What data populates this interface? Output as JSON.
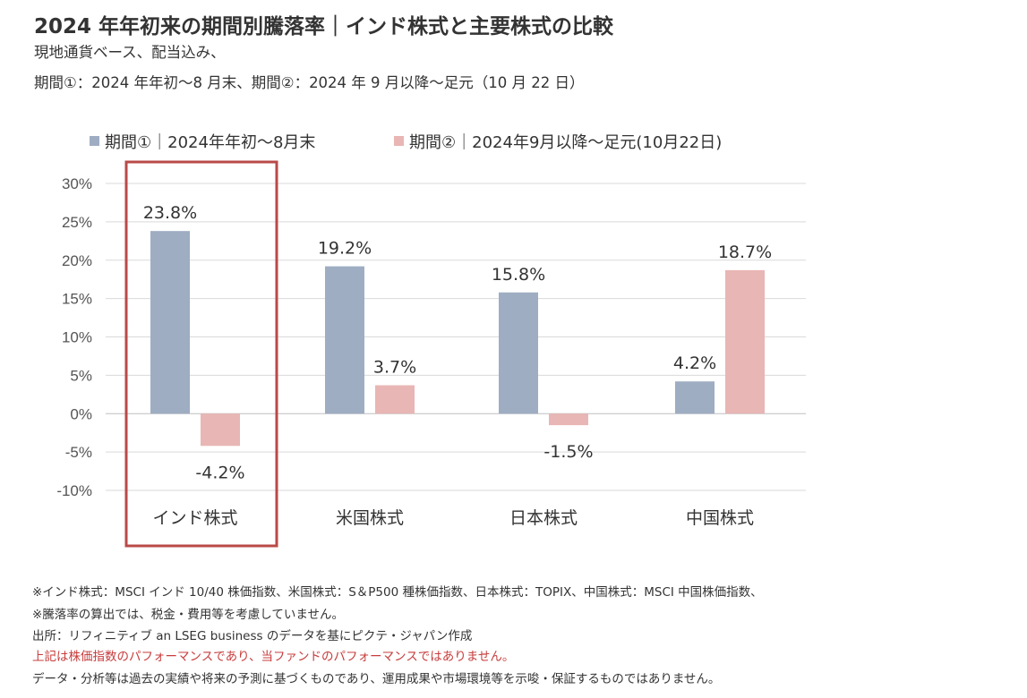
{
  "header": {
    "title": "2024 年年初来の期間別騰落率｜インド株式と主要株式の比較",
    "subtitle1": "現地通貨ベース、配当込み、",
    "subtitle2": "期間①：2024 年年初～8 月末、期間②：2024 年 9 月以降～足元（10 月 22 日）"
  },
  "colors": {
    "series1": "#9eadc2",
    "series2": "#e8b6b4",
    "highlight": "#b94a48",
    "grid": "#d9d9d9",
    "note_red": "#c83c3c"
  },
  "chart_data": {
    "type": "bar",
    "categories": [
      "インド株式",
      "米国株式",
      "日本株式",
      "中国株式"
    ],
    "series": [
      {
        "name": "期間①｜2024年年初～8月末",
        "values": [
          23.8,
          19.2,
          15.8,
          4.2
        ],
        "labels": [
          "23.8%",
          "19.2%",
          "15.8%",
          "4.2%"
        ]
      },
      {
        "name": "期間②｜2024年9月以降～足元(10月22日)",
        "values": [
          -4.2,
          3.7,
          -1.5,
          18.7
        ],
        "labels": [
          "-4.2%",
          "3.7%",
          "-1.5%",
          "18.7%"
        ]
      }
    ],
    "yticks": [
      30,
      25,
      20,
      15,
      10,
      5,
      0,
      -5,
      -10
    ],
    "ytick_labels": [
      "30%",
      "25%",
      "20%",
      "15%",
      "10%",
      "5%",
      "0%",
      "-5%",
      "-10%"
    ],
    "ylim": [
      -10,
      30
    ],
    "grid": true,
    "legend_position": "top",
    "highlighted_category": "インド株式"
  },
  "notes": [
    "※インド株式：MSCI インド 10/40 株価指数、米国株式：S＆P500 種株価指数、日本株式：TOPIX、中国株式：MSCI 中国株価指数、",
    "※騰落率の算出では、税金・費用等を考慮していません。",
    "出所：リフィニティブ an LSEG business のデータを基にピクテ・ジャパン作成",
    "上記は株価指数のパフォーマンスであり、当ファンドのパフォーマンスではありません。",
    "データ・分析等は過去の実績や将来の予測に基づくものであり、運用成果や市場環境等を示唆・保証するものではありません。"
  ]
}
